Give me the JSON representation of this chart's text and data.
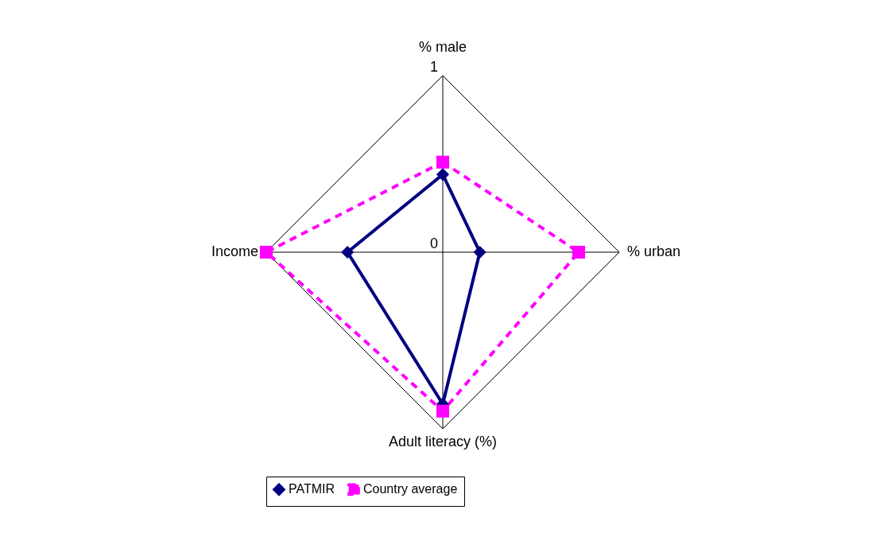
{
  "chart_data": {
    "type": "radar",
    "categories": [
      "% male",
      "% urban",
      "Adult literacy  (%)",
      "Income"
    ],
    "series": [
      {
        "name": "PATMIR",
        "color": "#000080",
        "values": [
          0.44,
          0.21,
          0.86,
          0.54
        ],
        "marker": "diamond",
        "line_style": "solid"
      },
      {
        "name": "Country average",
        "color": "#ff00ff",
        "values": [
          0.51,
          0.77,
          0.9,
          1.0
        ],
        "marker": "square",
        "line_style": "dashed"
      }
    ],
    "ylim": [
      0,
      1
    ],
    "yticks": [
      0,
      1
    ],
    "grid": true,
    "legend": "bottom"
  }
}
